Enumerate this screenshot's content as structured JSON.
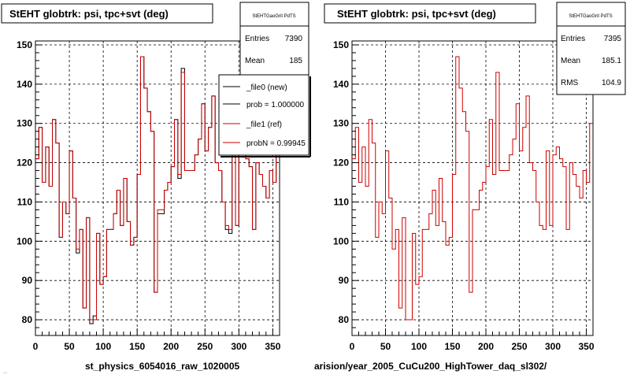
{
  "chart_data": [
    {
      "type": "line",
      "title": "StEHT globtrk: psi, tpc+svt (deg)",
      "xlim": [
        0,
        360
      ],
      "ylim": [
        76,
        151
      ],
      "xticks": [
        0,
        50,
        100,
        150,
        200,
        250,
        300,
        350
      ],
      "yticks": [
        80,
        90,
        100,
        110,
        120,
        130,
        140,
        150
      ],
      "grid": true,
      "bin_width": 5,
      "series": [
        {
          "name": "_file0 (new)",
          "color": "#000000",
          "values": [
            121,
            129,
            115,
            124,
            114,
            131,
            125,
            101,
            110,
            107,
            123,
            111,
            97,
            103,
            83,
            106,
            79,
            81,
            102,
            89,
            91,
            103,
            103,
            107,
            113,
            104,
            116,
            105,
            99,
            101,
            117,
            147,
            139,
            133,
            128,
            87,
            107,
            107,
            113,
            115,
            119,
            131,
            116,
            144,
            118,
            118,
            118,
            122,
            126,
            135,
            123,
            129,
            137,
            120,
            118,
            110,
            103,
            102,
            123,
            104,
            122,
            124,
            121,
            119,
            103,
            120,
            117,
            114,
            111,
            118,
            115,
            130
          ]
        },
        {
          "name": "_file1 (ref)",
          "color": "#cc0000",
          "values": [
            121,
            129,
            115,
            124,
            114,
            131,
            125,
            101,
            110,
            107,
            123,
            111,
            98,
            103,
            83,
            106,
            80,
            80,
            102,
            89,
            91,
            103,
            103,
            107,
            113,
            104,
            116,
            105,
            99,
            101,
            117,
            147,
            139,
            133,
            128,
            87,
            108,
            108,
            113,
            115,
            119,
            131,
            117,
            143,
            118,
            118,
            118,
            122,
            126,
            135,
            123,
            129,
            137,
            120,
            118,
            110,
            104,
            103,
            123,
            104,
            122,
            124,
            121,
            119,
            103,
            120,
            117,
            114,
            111,
            118,
            115,
            130
          ]
        }
      ],
      "stats": {
        "title": "StEHTGaoGrit PdTS",
        "entries_label": "Entries",
        "entries": "7390",
        "mean_label": "Mean",
        "mean": "185"
      },
      "legend": {
        "position": "top-right",
        "entries": [
          "_file0 (new)",
          "prob = 1.000000",
          "_file1 (ref)",
          "probN = 0.99945"
        ]
      },
      "bottom_label": "st_physics_6054016_raw_1020005"
    },
    {
      "type": "line",
      "title": "StEHT globtrk: psi, tpc+svt (deg)",
      "xlim": [
        0,
        360
      ],
      "ylim": [
        76,
        151
      ],
      "xticks": [
        0,
        50,
        100,
        150,
        200,
        250,
        300,
        350
      ],
      "yticks": [
        80,
        90,
        100,
        110,
        120,
        130,
        140,
        150
      ],
      "grid": true,
      "bin_width": 5,
      "series": [
        {
          "name": "_file1 (ref)",
          "color": "#cc0000",
          "values": [
            121,
            129,
            115,
            124,
            114,
            131,
            125,
            101,
            110,
            107,
            123,
            111,
            98,
            103,
            83,
            106,
            80,
            80,
            102,
            89,
            91,
            103,
            103,
            107,
            113,
            104,
            116,
            105,
            99,
            101,
            117,
            147,
            139,
            133,
            128,
            87,
            108,
            108,
            113,
            115,
            119,
            131,
            117,
            143,
            118,
            118,
            118,
            122,
            126,
            135,
            123,
            129,
            137,
            120,
            118,
            110,
            104,
            103,
            123,
            104,
            122,
            124,
            121,
            119,
            103,
            120,
            117,
            114,
            111,
            118,
            115,
            130
          ]
        }
      ],
      "stats": {
        "title": "StEHTGaoGrit PdTS",
        "entries_label": "Entries",
        "entries": "7395",
        "mean_label": "Mean",
        "mean": "185.1",
        "rms_label": "RMS",
        "rms": "104.9"
      },
      "bottom_label": "arision/year_2005_CuCu200_HighTower_daq_sl302/"
    }
  ],
  "footer_text": "..."
}
